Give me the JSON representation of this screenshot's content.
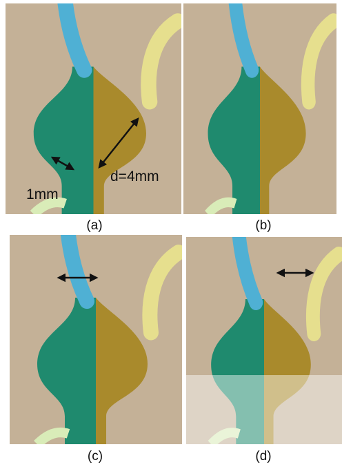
{
  "panels": [
    {
      "label": "(a)",
      "annotations": [
        "1mm",
        "d=4mm"
      ]
    },
    {
      "label": "(b)"
    },
    {
      "label": "(c)"
    },
    {
      "label": "(d)"
    }
  ]
}
